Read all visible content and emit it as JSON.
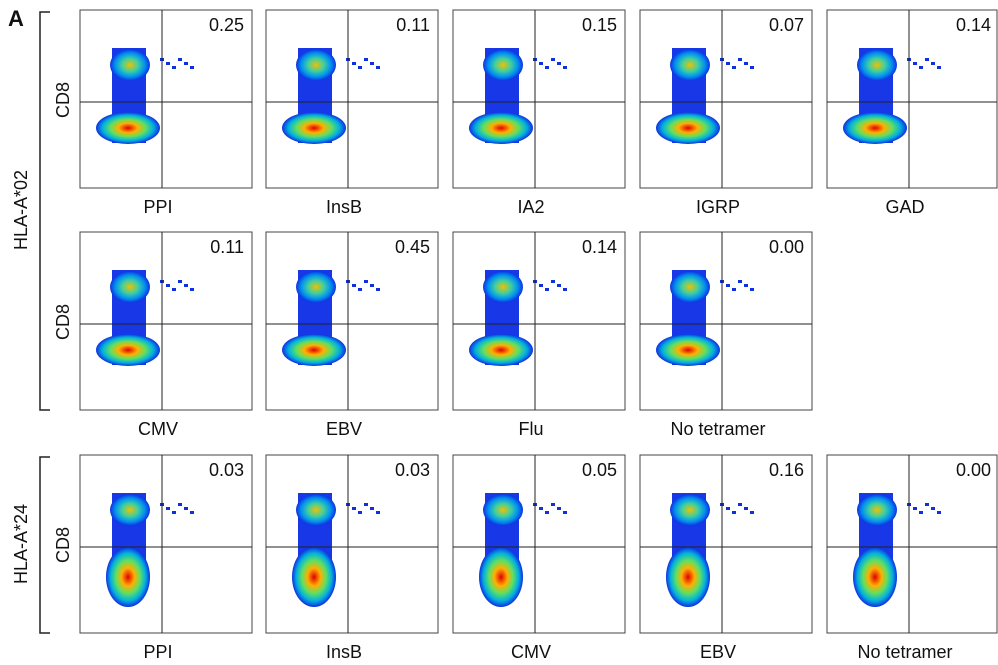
{
  "figure": {
    "panel_letter": "A",
    "y_axis_label": "CD8",
    "groups": [
      {
        "label": "HLA-A*02",
        "rows": [
          {
            "panels": [
              {
                "marker": "PPI",
                "value": "0.25"
              },
              {
                "marker": "InsB",
                "value": "0.11"
              },
              {
                "marker": "IA2",
                "value": "0.15"
              },
              {
                "marker": "IGRP",
                "value": "0.07"
              },
              {
                "marker": "GAD",
                "value": "0.14"
              }
            ]
          },
          {
            "panels": [
              {
                "marker": "CMV",
                "value": "0.11"
              },
              {
                "marker": "EBV",
                "value": "0.45"
              },
              {
                "marker": "Flu",
                "value": "0.14"
              },
              {
                "marker": "No tetramer",
                "value": "0.00"
              }
            ]
          }
        ]
      },
      {
        "label": "HLA-A*24",
        "rows": [
          {
            "panels": [
              {
                "marker": "PPI",
                "value": "0.03"
              },
              {
                "marker": "InsB",
                "value": "0.03"
              },
              {
                "marker": "CMV",
                "value": "0.05"
              },
              {
                "marker": "EBV",
                "value": "0.16"
              },
              {
                "marker": "No tetramer",
                "value": "0.00"
              }
            ]
          }
        ]
      }
    ]
  }
}
